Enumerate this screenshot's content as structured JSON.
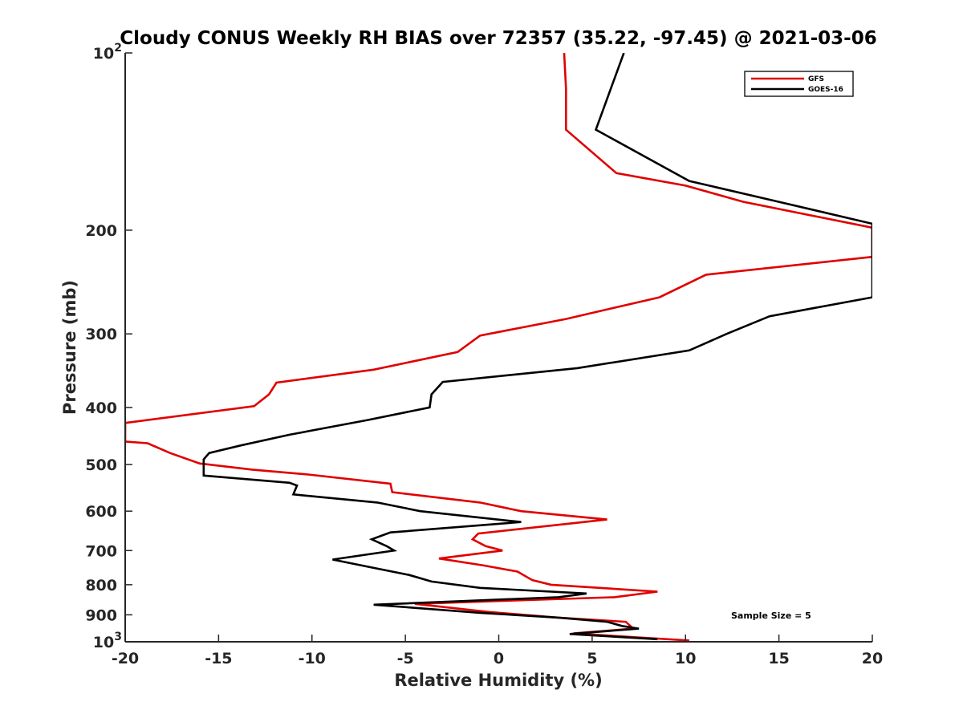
{
  "chart_data": {
    "type": "line",
    "title": "Cloudy CONUS Weekly RH BIAS over 72357 (35.22, -97.45) @ 2021-03-06",
    "xlabel": "Relative Humidity (%)",
    "ylabel": "Pressure (mb)",
    "xlim": [
      -20,
      20
    ],
    "ylim": [
      100,
      1000
    ],
    "y_scale": "log",
    "y_reversed": true,
    "grid": false,
    "legend_position": "top-right",
    "x_ticks": [
      "-20",
      "-15",
      "-10",
      "-5",
      "0",
      "5",
      "10",
      "15",
      "20"
    ],
    "y_ticks": [
      {
        "value": 100,
        "base": "10",
        "exp": "2"
      },
      {
        "value": 200,
        "label": "200"
      },
      {
        "value": 300,
        "label": "300"
      },
      {
        "value": 400,
        "label": "400"
      },
      {
        "value": 500,
        "label": "500"
      },
      {
        "value": 600,
        "label": "600"
      },
      {
        "value": 700,
        "label": "700"
      },
      {
        "value": 800,
        "label": "800"
      },
      {
        "value": 900,
        "label": "900"
      },
      {
        "value": 1000,
        "base": "10",
        "exp": "3"
      }
    ],
    "series": [
      {
        "name": "GFS",
        "color": "#e00000",
        "points": [
          [
            3.5,
            100
          ],
          [
            3.6,
            115
          ],
          [
            3.6,
            135
          ],
          [
            6.3,
            160
          ],
          [
            10.0,
            168
          ],
          [
            13.1,
            179
          ],
          [
            20.0,
            198
          ],
          [
            20.0,
            222
          ],
          [
            11.1,
            238
          ],
          [
            8.6,
            260
          ],
          [
            3.6,
            283
          ],
          [
            -1.0,
            302
          ],
          [
            -2.2,
            322
          ],
          [
            -6.7,
            345
          ],
          [
            -11.9,
            363
          ],
          [
            -12.3,
            380
          ],
          [
            -13.1,
            398
          ],
          [
            -20.0,
            425
          ],
          [
            -20.0,
            457
          ],
          [
            -18.8,
            460
          ],
          [
            -17.6,
            478
          ],
          [
            -16.0,
            498
          ],
          [
            -13.2,
            510
          ],
          [
            -10.2,
            520
          ],
          [
            -5.8,
            539
          ],
          [
            -5.7,
            557
          ],
          [
            -1.0,
            580
          ],
          [
            1.2,
            600
          ],
          [
            5.8,
            620
          ],
          [
            -1.1,
            655
          ],
          [
            -1.4,
            670
          ],
          [
            -0.7,
            688
          ],
          [
            0.2,
            700
          ],
          [
            -3.2,
            722
          ],
          [
            -0.8,
            742
          ],
          [
            1.0,
            760
          ],
          [
            1.8,
            786
          ],
          [
            2.8,
            800
          ],
          [
            8.5,
            822
          ],
          [
            6.2,
            840
          ],
          [
            -4.5,
            862
          ],
          [
            -0.5,
            890
          ],
          [
            3.2,
            910
          ],
          [
            6.8,
            925
          ],
          [
            7.2,
            950
          ],
          [
            4.0,
            968
          ],
          [
            10.2,
            995
          ]
        ]
      },
      {
        "name": "GOES-16",
        "color": "#000000",
        "points": [
          [
            6.7,
            100
          ],
          [
            6.0,
            115
          ],
          [
            5.2,
            135
          ],
          [
            10.2,
            165
          ],
          [
            15.0,
            179
          ],
          [
            20.0,
            195
          ],
          [
            20.0,
            260
          ],
          [
            14.5,
            280
          ],
          [
            12.2,
            300
          ],
          [
            10.2,
            320
          ],
          [
            4.2,
            343
          ],
          [
            -3.0,
            362
          ],
          [
            -3.6,
            380
          ],
          [
            -3.7,
            400
          ],
          [
            -7.0,
            420
          ],
          [
            -11.2,
            445
          ],
          [
            -13.8,
            464
          ],
          [
            -15.5,
            478
          ],
          [
            -15.8,
            490
          ],
          [
            -15.8,
            522
          ],
          [
            -11.2,
            537
          ],
          [
            -10.8,
            543
          ],
          [
            -11.0,
            562
          ],
          [
            -6.5,
            580
          ],
          [
            -4.2,
            600
          ],
          [
            1.2,
            626
          ],
          [
            -5.8,
            652
          ],
          [
            -6.8,
            670
          ],
          [
            -6.0,
            688
          ],
          [
            -5.6,
            700
          ],
          [
            -8.9,
            725
          ],
          [
            -6.8,
            748
          ],
          [
            -4.8,
            770
          ],
          [
            -3.6,
            790
          ],
          [
            -1.0,
            810
          ],
          [
            4.7,
            828
          ],
          [
            3.2,
            840
          ],
          [
            -6.7,
            865
          ],
          [
            -1.0,
            893
          ],
          [
            3.2,
            910
          ],
          [
            5.8,
            925
          ],
          [
            6.6,
            940
          ],
          [
            7.5,
            950
          ],
          [
            3.8,
            970
          ],
          [
            8.5,
            990
          ]
        ]
      }
    ],
    "annotations": [
      {
        "text": "Sample Size = 5"
      }
    ]
  }
}
